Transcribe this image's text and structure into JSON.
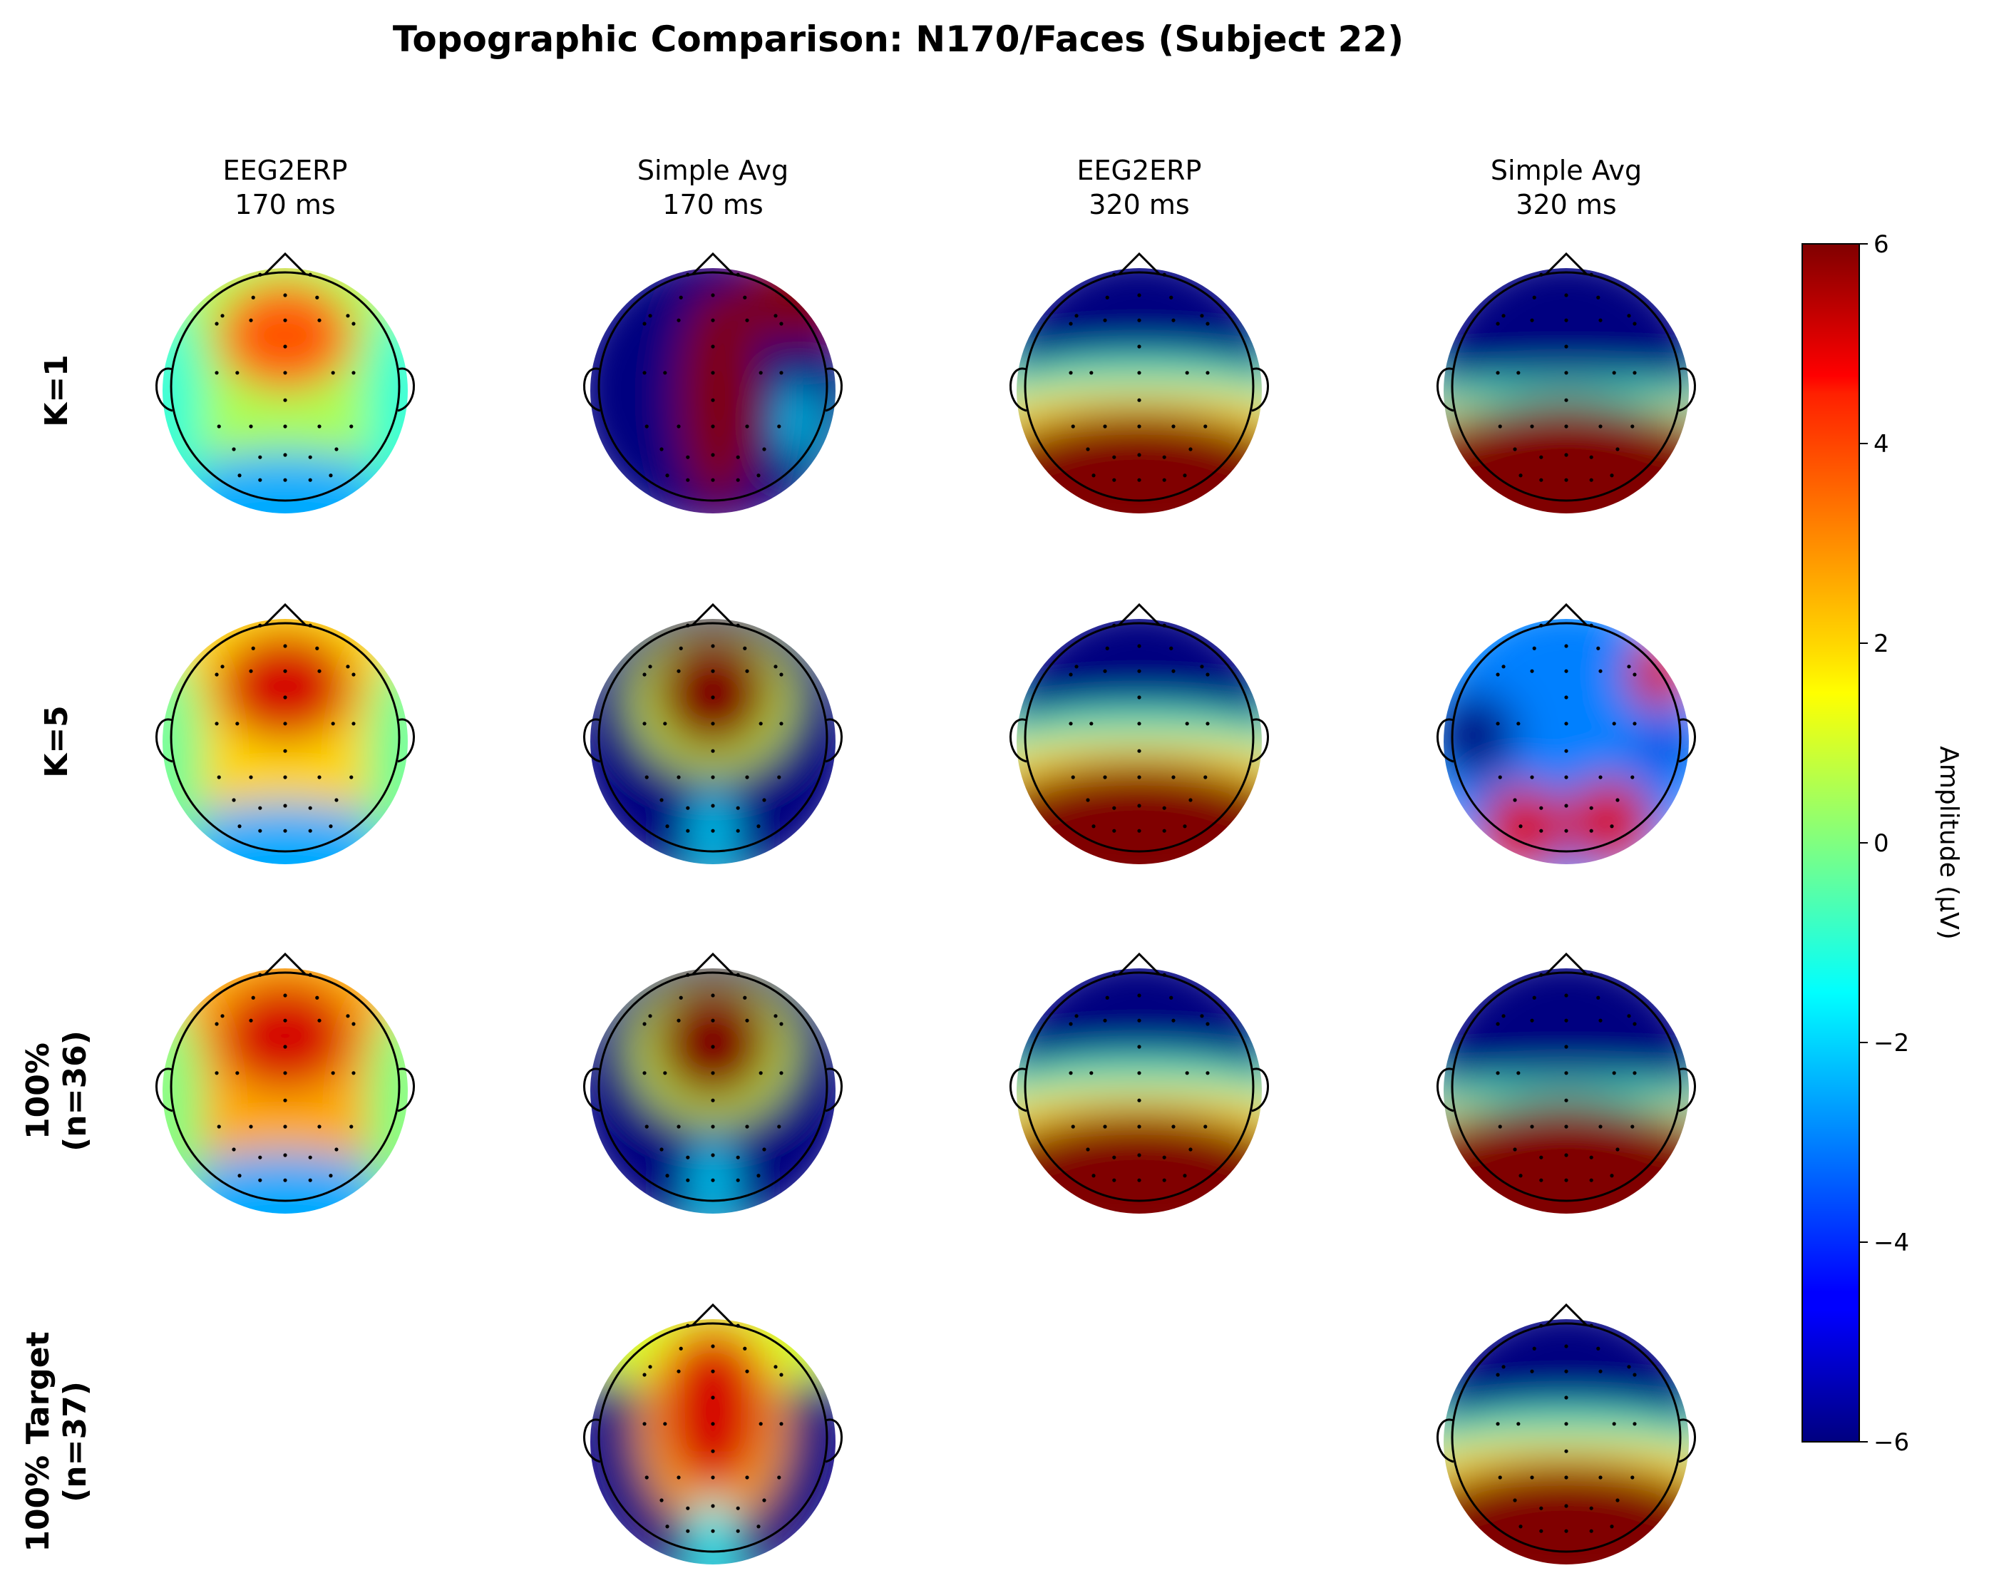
{
  "chart_data": {
    "type": "heatmap",
    "subtype": "eeg-topographic-maps",
    "title": "Topographic Comparison: N170/Faces (Subject 22)",
    "columns": [
      {
        "method": "EEG2ERP",
        "time": "170 ms"
      },
      {
        "method": "Simple Avg",
        "time": "170 ms"
      },
      {
        "method": "EEG2ERP",
        "time": "320 ms"
      },
      {
        "method": "Simple Avg",
        "time": "320 ms"
      }
    ],
    "rows": [
      {
        "label": [
          "K=1"
        ]
      },
      {
        "label": [
          "K=5"
        ]
      },
      {
        "label": [
          "100%",
          "(n=36)"
        ]
      },
      {
        "label": [
          "100% Target",
          "(n=37)"
        ]
      }
    ],
    "maps": [
      {
        "row": 0,
        "col": 0,
        "pattern": "frontal-positive",
        "peak": 3.5,
        "base": 0.5,
        "edge": -2.5
      },
      {
        "row": 0,
        "col": 1,
        "pattern": "noisy-saturated",
        "peak": 6,
        "base": -6
      },
      {
        "row": 0,
        "col": 2,
        "pattern": "posterior-positive",
        "front": -6,
        "back": 6
      },
      {
        "row": 0,
        "col": 3,
        "pattern": "posterior-positive-sharp",
        "front": -6,
        "back": 6
      },
      {
        "row": 1,
        "col": 0,
        "pattern": "frontal-positive",
        "peak": 5,
        "base": 2,
        "edge": -2.5
      },
      {
        "row": 1,
        "col": 1,
        "pattern": "frontal-central-saturated",
        "peak": 6,
        "base": -6
      },
      {
        "row": 1,
        "col": 2,
        "pattern": "posterior-positive",
        "front": -6,
        "back": 6
      },
      {
        "row": 1,
        "col": 3,
        "pattern": "mixed",
        "front": -3,
        "back": 5
      },
      {
        "row": 2,
        "col": 0,
        "pattern": "frontal-positive",
        "peak": 5,
        "base": 2.5,
        "edge": -2.5
      },
      {
        "row": 2,
        "col": 1,
        "pattern": "frontal-central-saturated",
        "peak": 6,
        "base": -6
      },
      {
        "row": 2,
        "col": 2,
        "pattern": "posterior-positive",
        "front": -6,
        "back": 6
      },
      {
        "row": 2,
        "col": 3,
        "pattern": "posterior-positive-sharp",
        "front": -6,
        "back": 6
      },
      {
        "row": 3,
        "col": 1,
        "pattern": "frontal-central-positive",
        "peak": 5,
        "base": -6
      },
      {
        "row": 3,
        "col": 3,
        "pattern": "posterior-positive",
        "front": -6,
        "back": 6
      }
    ],
    "colorbar": {
      "label": "Amplitude (µV)",
      "min": -6,
      "max": 6,
      "ticks": [
        6,
        4,
        2,
        0,
        -2,
        -4,
        -6
      ],
      "tick_labels": [
        "6",
        "4",
        "2",
        "0",
        "−2",
        "−4",
        "−6"
      ],
      "colormap": "jet"
    }
  }
}
